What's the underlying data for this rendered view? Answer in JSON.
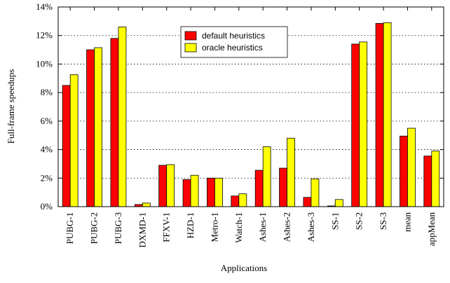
{
  "chart_data": {
    "type": "bar",
    "xlabel": "Applications",
    "ylabel": "Full-frame speedups",
    "categories": [
      "PUBG-1",
      "PUBG-2",
      "PUBG-3",
      "DXMD-1",
      "FFXV-1",
      "HZD-1",
      "Metro-1",
      "Watch-1",
      "Ashes-1",
      "Ashes-2",
      "Ashes-3",
      "SS-1",
      "SS-2",
      "SS-3",
      "mean",
      "appMean"
    ],
    "series": [
      {
        "name": "default heuristics",
        "color": "#ff0000",
        "values": [
          8.5,
          11.0,
          11.8,
          0.15,
          2.9,
          1.9,
          2.0,
          0.75,
          2.55,
          2.7,
          0.65,
          0.05,
          11.4,
          12.85,
          4.95,
          3.55
        ]
      },
      {
        "name": "oracle heuristics",
        "color": "#ffff00",
        "values": [
          9.25,
          11.15,
          12.6,
          0.25,
          2.95,
          2.2,
          2.0,
          0.9,
          4.2,
          4.8,
          1.95,
          0.5,
          11.55,
          12.9,
          5.5,
          3.9
        ]
      }
    ],
    "ylim": [
      0,
      14
    ],
    "yticks": [
      {
        "value": 0,
        "label": "0%"
      },
      {
        "value": 2,
        "label": "2%"
      },
      {
        "value": 4,
        "label": "4%"
      },
      {
        "value": 6,
        "label": "6%"
      },
      {
        "value": 8,
        "label": "8%"
      },
      {
        "value": 10,
        "label": "10%"
      },
      {
        "value": 12,
        "label": "12%"
      },
      {
        "value": 14,
        "label": "14%"
      }
    ],
    "grid": true,
    "legend_position": "upper center"
  }
}
